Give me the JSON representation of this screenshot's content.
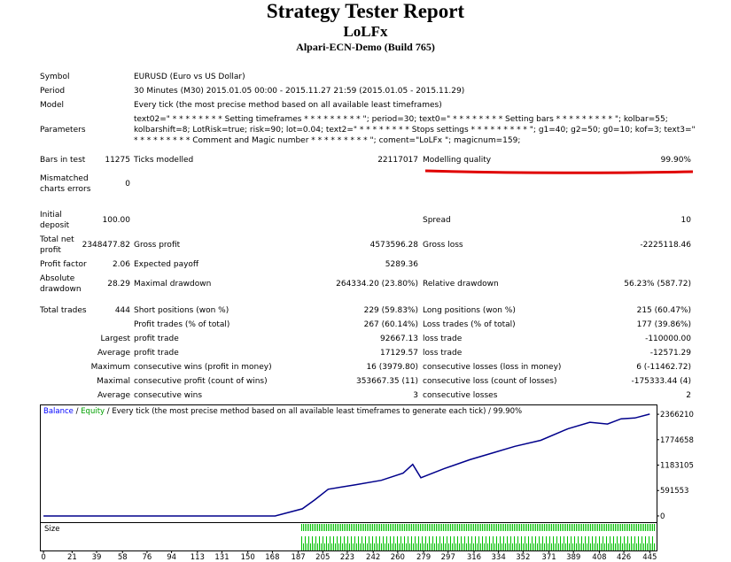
{
  "header": {
    "title": "Strategy Tester Report",
    "name": "LoLFx",
    "server": "Alpari-ECN-Demo (Build 765)"
  },
  "rows": [
    [
      "Symbol",
      "EURUSD (Euro vs US Dollar)"
    ],
    [
      "Period",
      "30 Minutes (M30) 2015.01.05 00:00 - 2015.11.27 21:59 (2015.01.05 - 2015.11.29)"
    ],
    [
      "Model",
      "Every tick (the most precise method based on all available least timeframes)"
    ],
    [
      "Parameters",
      "text02=\" * * * * * * * * Setting timeframes * * * * * * * * * \"; period=30; text0=\" * * * * * * * * Setting bars * * * * * * * * * \"; kolbar=55; kolbarshift=8; LotRisk=true; risk=90; lot=0.04; text2=\" * * * * * * * * Stops settings * * * * * * * * * \"; g1=40; g2=50; g0=10; kof=3; text3=\" * * * * * * * * * Comment and Magic number * * * * * * * * * \"; coment=\"LoLFx \"; magicnum=159;"
    ],
    [
      "Bars in test",
      "11275",
      "Ticks modelled",
      "22117017",
      "Modelling quality",
      "99.90%"
    ],
    [
      "Mismatched charts errors",
      "0"
    ],
    [
      "Initial deposit",
      "100.00",
      "Spread",
      "10"
    ],
    [
      "Total net profit",
      "2348477.82",
      "Gross profit",
      "4573596.28",
      "Gross loss",
      "-2225118.46"
    ],
    [
      "Profit factor",
      "2.06",
      "Expected payoff",
      "5289.36"
    ],
    [
      "Absolute drawdown",
      "28.29",
      "Maximal drawdown",
      "264334.20 (23.80%)",
      "Relative drawdown",
      "56.23% (587.72)"
    ],
    [
      "Total trades",
      "444",
      "Short positions (won %)",
      "229 (59.83%)",
      "Long positions (won %)",
      "215 (60.47%)"
    ],
    [
      "Profit trades (% of total)",
      "267 (60.14%)",
      "Loss trades (% of total)",
      "177 (39.86%)"
    ],
    [
      "Largest",
      "profit trade",
      "92667.13",
      "loss trade",
      "-110000.00"
    ],
    [
      "Average",
      "profit trade",
      "17129.57",
      "loss trade",
      "-12571.29"
    ],
    [
      "Maximum",
      "consecutive wins (profit in money)",
      "16 (3979.80)",
      "consecutive losses (loss in money)",
      "6 (-11462.72)"
    ],
    [
      "Maximal",
      "consecutive profit (count of wins)",
      "353667.35 (11)",
      "consecutive loss (count of losses)",
      "-175333.44 (4)"
    ],
    [
      "Average",
      "consecutive wins",
      "3",
      "consecutive losses",
      "2"
    ]
  ],
  "chart_data": {
    "type": "line",
    "legend": {
      "balance": "Balance",
      "equity": "Equity",
      "separator": " / ",
      "description": "Every tick (the most precise method based on all available least timeframes to generate each tick)",
      "quality": "99.90%"
    },
    "size_label": "Size",
    "series": [
      {
        "name": "Balance",
        "color": "#00008b",
        "x": [
          0,
          170,
          190,
          199,
          209,
          229,
          248,
          264,
          271,
          277,
          294,
          313,
          330,
          346,
          365,
          385,
          401,
          414,
          424,
          434,
          445
        ],
        "values": [
          100,
          100,
          166000,
          373000,
          622000,
          726000,
          830000,
          996000,
          1200000,
          890000,
          1100000,
          1310000,
          1470000,
          1620000,
          1760000,
          2030000,
          2180000,
          2140000,
          2260000,
          2280000,
          2370000
        ]
      }
    ],
    "equity_color": "#00a000",
    "xlim": [
      -2,
      450
    ],
    "ylim": [
      -145000,
      2574000
    ],
    "xticks": [
      0,
      21,
      39,
      58,
      76,
      94,
      113,
      131,
      150,
      168,
      187,
      205,
      223,
      242,
      260,
      279,
      297,
      316,
      334,
      352,
      371,
      389,
      408,
      426,
      445
    ],
    "yticks": [
      0,
      591553,
      1183105,
      1774658,
      2366210
    ]
  }
}
